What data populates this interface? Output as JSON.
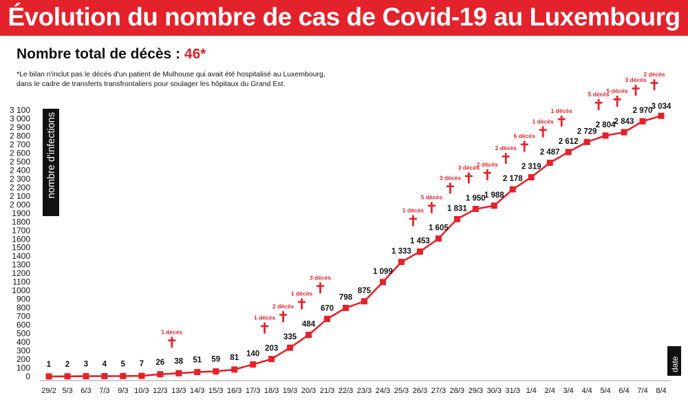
{
  "colors": {
    "accent": "#e3222b",
    "text": "#111111",
    "axis_box": "#111111"
  },
  "header": {
    "title": "Évolution du nombre de cas de Covid-19 au Luxembourg"
  },
  "deaths": {
    "label": "Nombre total de décès :",
    "value": "46*"
  },
  "footnote": {
    "line1": "*Le bilan n'inclut pas le décès d'un patient de Mulhouse qui avait été hospitalisé au Luxembourg,",
    "line2": "dans le cadre de transferts transfrontaliers pour soulager les hôpitaux du Grand Est."
  },
  "icons": {
    "death_marker": "latin-cross-icon"
  },
  "chart_data": {
    "type": "line",
    "title": "Évolution du nombre de cas de Covid-19 au Luxembourg",
    "xlabel": "date",
    "ylabel": "nombre d'infections",
    "ylim": [
      0,
      3100
    ],
    "ytick_step": 100,
    "ytick_labels": [
      "0",
      "100",
      "200",
      "300",
      "400",
      "500",
      "600",
      "700",
      "800",
      "900",
      "1000",
      "1100",
      "1200",
      "1300",
      "1400",
      "1500",
      "1600",
      "1700",
      "1800",
      "1900",
      "2 000",
      "2 100",
      "2 200",
      "2 300",
      "2 400",
      "2 500",
      "2 600",
      "2 700",
      "2 800",
      "2 900",
      "3 000",
      "3 100"
    ],
    "categories": [
      "29/2",
      "5/3",
      "6/3",
      "7/3",
      "9/3",
      "10/3",
      "12/3",
      "13/3",
      "14/3",
      "15/3",
      "16/3",
      "17/3",
      "18/3",
      "19/3",
      "20/3",
      "21/3",
      "22/3",
      "23/3",
      "24/3",
      "25/3",
      "26/3",
      "27/3",
      "28/3",
      "29/3",
      "30/3",
      "31/3",
      "1/4",
      "2/4",
      "3/4",
      "4/4",
      "5/4",
      "6/4",
      "7/4",
      "8/4"
    ],
    "values": [
      1,
      2,
      3,
      4,
      5,
      7,
      26,
      38,
      51,
      59,
      81,
      140,
      203,
      335,
      484,
      670,
      798,
      875,
      1099,
      1333,
      1453,
      1605,
      1831,
      1950,
      1988,
      2178,
      2319,
      2487,
      2612,
      2729,
      2804,
      2843,
      2970,
      3034
    ],
    "value_labels": [
      "1",
      "2",
      "3",
      "4",
      "5",
      "7",
      "26",
      "38",
      "51",
      "59",
      "81",
      "140",
      "203",
      "335",
      "484",
      "670",
      "798",
      "875",
      "1 099",
      "1 333",
      "1 453",
      "1 605",
      "1 831",
      "1 950",
      "1 988",
      "2 178",
      "2 319",
      "2 487",
      "2 612",
      "2 729",
      "2 804",
      "2 843",
      "2 970",
      "3 034"
    ],
    "deaths": [
      {
        "index": 7,
        "label": "1 décès"
      },
      {
        "index": 12,
        "label": "1 décès"
      },
      {
        "index": 13,
        "label": "2 décès"
      },
      {
        "index": 14,
        "label": "1 décès"
      },
      {
        "index": 15,
        "label": "3 décès"
      },
      {
        "index": 20,
        "label": "1 décès"
      },
      {
        "index": 21,
        "label": "5 décès"
      },
      {
        "index": 22,
        "label": "3 décès"
      },
      {
        "index": 23,
        "label": "3 décès"
      },
      {
        "index": 24,
        "label": "2 décès"
      },
      {
        "index": 25,
        "label": "2 décès"
      },
      {
        "index": 26,
        "label": "6 décès"
      },
      {
        "index": 27,
        "label": "1 décès"
      },
      {
        "index": 28,
        "label": "1 décès"
      },
      {
        "index": 30,
        "label": "5 décès"
      },
      {
        "index": 31,
        "label": "5 décès"
      },
      {
        "index": 32,
        "label": "3 décès"
      },
      {
        "index": 33,
        "label": "2 décès"
      }
    ]
  }
}
